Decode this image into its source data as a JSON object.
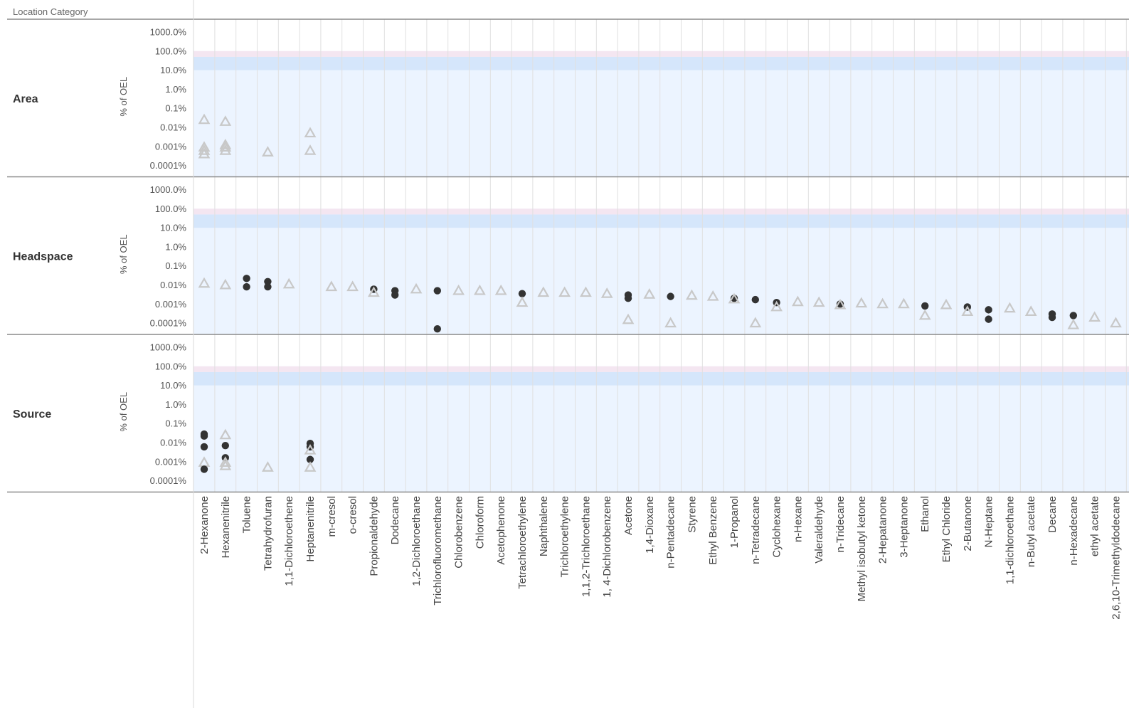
{
  "header": {
    "location_category_label": "Location Category"
  },
  "chart_data": {
    "type": "scatter",
    "title": "",
    "xlabel": "",
    "ylabel": "% of OEL",
    "yscale": "log",
    "ylim": [
      0.0001,
      1000
    ],
    "y_ticks": [
      "1000.0%",
      "100.0%",
      "10.0%",
      "1.0%",
      "0.1%",
      "0.01%",
      "0.001%",
      "0.0001%"
    ],
    "y_tick_values": [
      1000,
      100,
      10,
      1,
      0.1,
      0.01,
      0.001,
      0.0001
    ],
    "reference_bands": [
      {
        "from": 10,
        "to": 50,
        "color": "#d5e6fb"
      },
      {
        "from": 50,
        "to": 100,
        "color": "#f4e6f1"
      }
    ],
    "background_color": "#ecf4ff",
    "grid": true,
    "legend": "none",
    "marker_colors": {
      "circle": "#333333",
      "triangle": "#c8c8c8"
    },
    "categories": [
      "2-Hexanone",
      "Hexanenitrile",
      "Toluene",
      "Tetrahydrofuran",
      "1,1-Dichloroethene",
      "Heptanenitrile",
      "m-cresol",
      "o-cresol",
      "Propionaldehyde",
      "Dodecane",
      "1,2-Dichloroethane",
      "Trichlorofluoromethane",
      "Chlorobenzene",
      "Chloroform",
      "Acetophenone",
      "Tetrachloroethylene",
      "Naphthalene",
      "Trichloroethylene",
      "1,1,2-Trichloroethane",
      "1, 4-Dichlorobenzene",
      "Acetone",
      "1,4-Dioxane",
      "n-Pentadecane",
      "Styrene",
      "Ethyl Benzene",
      "1-Propanol",
      "n-Tetradecane",
      "Cyclohexane",
      "n-Hexane",
      "Valeraldehyde",
      "n-Tridecane",
      "Methyl isobutyl ketone",
      "2-Hepatanone",
      "3-Heptanone",
      "Ethanol",
      "Ethyl Chloride",
      "2-Butanone",
      "N-Heptane",
      "1,1-dichloroethane",
      "n-Butyl acetate",
      "Decane",
      "n-Hexadecane",
      "ethyl acetate",
      "2,6,10-Trimethyldodecane"
    ],
    "panels": [
      {
        "name": "Area",
        "points": [
          {
            "category": "2-Hexanone",
            "marker": "triangle",
            "y": 0.025
          },
          {
            "category": "2-Hexanone",
            "marker": "triangle",
            "y": 0.0009
          },
          {
            "category": "2-Hexanone",
            "marker": "triangle",
            "y": 0.0006
          },
          {
            "category": "2-Hexanone",
            "marker": "triangle",
            "y": 0.0004
          },
          {
            "category": "Hexanenitrile",
            "marker": "triangle",
            "y": 0.02
          },
          {
            "category": "Hexanenitrile",
            "marker": "triangle",
            "y": 0.0012
          },
          {
            "category": "Hexanenitrile",
            "marker": "triangle",
            "y": 0.0009
          },
          {
            "category": "Hexanenitrile",
            "marker": "triangle",
            "y": 0.0006
          },
          {
            "category": "Tetrahydrofuran",
            "marker": "triangle",
            "y": 0.0005
          },
          {
            "category": "Heptanenitrile",
            "marker": "triangle",
            "y": 0.005
          },
          {
            "category": "Heptanenitrile",
            "marker": "triangle",
            "y": 0.0006
          }
        ]
      },
      {
        "name": "Headspace",
        "points": [
          {
            "category": "2-Hexanone",
            "marker": "triangle",
            "y": 0.012
          },
          {
            "category": "Hexanenitrile",
            "marker": "triangle",
            "y": 0.01
          },
          {
            "category": "Toluene",
            "marker": "circle",
            "y": 0.022
          },
          {
            "category": "Toluene",
            "marker": "circle",
            "y": 0.008
          },
          {
            "category": "Tetrahydrofuran",
            "marker": "circle",
            "y": 0.015
          },
          {
            "category": "Tetrahydrofuran",
            "marker": "circle",
            "y": 0.008
          },
          {
            "category": "1,1-Dichloroethene",
            "marker": "triangle",
            "y": 0.011
          },
          {
            "category": "m-cresol",
            "marker": "triangle",
            "y": 0.008
          },
          {
            "category": "o-cresol",
            "marker": "triangle",
            "y": 0.008
          },
          {
            "category": "Propionaldehyde",
            "marker": "circle",
            "y": 0.006
          },
          {
            "category": "Propionaldehyde",
            "marker": "triangle",
            "y": 0.004
          },
          {
            "category": "Dodecane",
            "marker": "circle",
            "y": 0.005
          },
          {
            "category": "Dodecane",
            "marker": "circle",
            "y": 0.003
          },
          {
            "category": "1,2-Dichloroethane",
            "marker": "triangle",
            "y": 0.006
          },
          {
            "category": "Trichlorofluoromethane",
            "marker": "circle",
            "y": 0.005
          },
          {
            "category": "Trichlorofluoromethane",
            "marker": "circle",
            "y": 5e-05
          },
          {
            "category": "Chlorobenzene",
            "marker": "triangle",
            "y": 0.005
          },
          {
            "category": "Chloroform",
            "marker": "triangle",
            "y": 0.005
          },
          {
            "category": "Acetophenone",
            "marker": "triangle",
            "y": 0.005
          },
          {
            "category": "Tetrachloroethylene",
            "marker": "circle",
            "y": 0.0035
          },
          {
            "category": "Tetrachloroethylene",
            "marker": "triangle",
            "y": 0.0012
          },
          {
            "category": "Naphthalene",
            "marker": "triangle",
            "y": 0.004
          },
          {
            "category": "Trichloroethylene",
            "marker": "triangle",
            "y": 0.004
          },
          {
            "category": "1,1,2-Trichloroethane",
            "marker": "triangle",
            "y": 0.004
          },
          {
            "category": "1, 4-Dichlorobenzene",
            "marker": "triangle",
            "y": 0.0035
          },
          {
            "category": "Acetone",
            "marker": "circle",
            "y": 0.003
          },
          {
            "category": "Acetone",
            "marker": "circle",
            "y": 0.002
          },
          {
            "category": "Acetone",
            "marker": "triangle",
            "y": 0.00015
          },
          {
            "category": "1,4-Dioxane",
            "marker": "triangle",
            "y": 0.0032
          },
          {
            "category": "n-Pentadecane",
            "marker": "circle",
            "y": 0.0025
          },
          {
            "category": "n-Pentadecane",
            "marker": "triangle",
            "y": 0.0001
          },
          {
            "category": "Styrene",
            "marker": "triangle",
            "y": 0.0028
          },
          {
            "category": "Ethyl Benzene",
            "marker": "triangle",
            "y": 0.0025
          },
          {
            "category": "1-Propanol",
            "marker": "circle",
            "y": 0.002
          },
          {
            "category": "1-Propanol",
            "marker": "triangle",
            "y": 0.0018
          },
          {
            "category": "n-Tetradecane",
            "marker": "circle",
            "y": 0.0017
          },
          {
            "category": "n-Tetradecane",
            "marker": "triangle",
            "y": 0.0001
          },
          {
            "category": "Cyclohexane",
            "marker": "circle",
            "y": 0.0012
          },
          {
            "category": "Cyclohexane",
            "marker": "triangle",
            "y": 0.0007
          },
          {
            "category": "n-Hexane",
            "marker": "triangle",
            "y": 0.0013
          },
          {
            "category": "Valeraldehyde",
            "marker": "triangle",
            "y": 0.0012
          },
          {
            "category": "n-Tridecane",
            "marker": "circle",
            "y": 0.001
          },
          {
            "category": "n-Tridecane",
            "marker": "triangle",
            "y": 0.0009
          },
          {
            "category": "Methyl isobutyl ketone",
            "marker": "triangle",
            "y": 0.0011
          },
          {
            "category": "2-Hepatanone",
            "marker": "triangle",
            "y": 0.001
          },
          {
            "category": "3-Heptanone",
            "marker": "triangle",
            "y": 0.001
          },
          {
            "category": "Ethanol",
            "marker": "circle",
            "y": 0.0008
          },
          {
            "category": "Ethanol",
            "marker": "triangle",
            "y": 0.00025
          },
          {
            "category": "Ethyl Chloride",
            "marker": "triangle",
            "y": 0.0009
          },
          {
            "category": "2-Butanone",
            "marker": "circle",
            "y": 0.0007
          },
          {
            "category": "2-Butanone",
            "marker": "triangle",
            "y": 0.0004
          },
          {
            "category": "N-Heptane",
            "marker": "circle",
            "y": 0.0005
          },
          {
            "category": "N-Heptane",
            "marker": "circle",
            "y": 0.00016
          },
          {
            "category": "1,1-dichloroethane",
            "marker": "triangle",
            "y": 0.0006
          },
          {
            "category": "n-Butyl acetate",
            "marker": "triangle",
            "y": 0.0004
          },
          {
            "category": "Decane",
            "marker": "circle",
            "y": 0.0003
          },
          {
            "category": "Decane",
            "marker": "circle",
            "y": 0.0002
          },
          {
            "category": "n-Hexadecane",
            "marker": "circle",
            "y": 0.00025
          },
          {
            "category": "n-Hexadecane",
            "marker": "triangle",
            "y": 8e-05
          },
          {
            "category": "ethyl acetate",
            "marker": "triangle",
            "y": 0.0002
          },
          {
            "category": "2,6,10-Trimethyldodecane",
            "marker": "triangle",
            "y": 0.0001
          }
        ]
      },
      {
        "name": "Source",
        "points": [
          {
            "category": "2-Hexanone",
            "marker": "circle",
            "y": 0.028
          },
          {
            "category": "2-Hexanone",
            "marker": "circle",
            "y": 0.022
          },
          {
            "category": "2-Hexanone",
            "marker": "circle",
            "y": 0.006
          },
          {
            "category": "2-Hexanone",
            "marker": "triangle",
            "y": 0.0009
          },
          {
            "category": "2-Hexanone",
            "marker": "circle",
            "y": 0.0004
          },
          {
            "category": "Hexanenitrile",
            "marker": "triangle",
            "y": 0.025
          },
          {
            "category": "Hexanenitrile",
            "marker": "circle",
            "y": 0.007
          },
          {
            "category": "Hexanenitrile",
            "marker": "circle",
            "y": 0.0016
          },
          {
            "category": "Hexanenitrile",
            "marker": "triangle",
            "y": 0.0009
          },
          {
            "category": "Hexanenitrile",
            "marker": "triangle",
            "y": 0.0006
          },
          {
            "category": "Tetrahydrofuran",
            "marker": "triangle",
            "y": 0.0005
          },
          {
            "category": "Heptanenitrile",
            "marker": "circle",
            "y": 0.009
          },
          {
            "category": "Heptanenitrile",
            "marker": "circle",
            "y": 0.006
          },
          {
            "category": "Heptanenitrile",
            "marker": "triangle",
            "y": 0.004
          },
          {
            "category": "Heptanenitrile",
            "marker": "circle",
            "y": 0.0013
          },
          {
            "category": "Heptanenitrile",
            "marker": "triangle",
            "y": 0.0005
          }
        ]
      }
    ]
  }
}
